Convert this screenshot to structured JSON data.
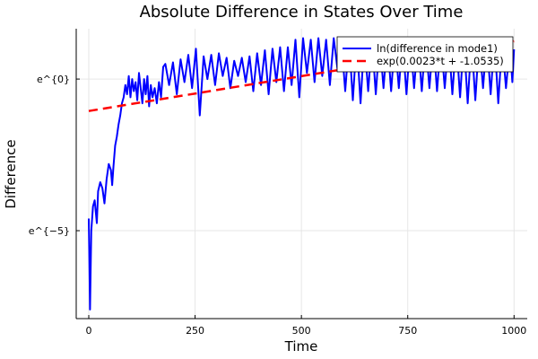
{
  "chart_data": {
    "type": "line",
    "title": "Absolute Difference in States Over Time",
    "xlabel": "Time",
    "ylabel": "Difference",
    "xlim": [
      -29.5,
      1031
    ],
    "ylim": [
      -7.9,
      1.66
    ],
    "grid": true,
    "legend_position": "top-right",
    "x_ticks": [
      {
        "value": 0,
        "label": "0"
      },
      {
        "value": 250,
        "label": "250"
      },
      {
        "value": 500,
        "label": "500"
      },
      {
        "value": 750,
        "label": "750"
      },
      {
        "value": 1000,
        "label": "1000"
      }
    ],
    "y_ticks": [
      {
        "value": 0,
        "label": "e^{0}"
      },
      {
        "value": -5,
        "label": "e^{−5}"
      }
    ],
    "series": [
      {
        "name": "ln(difference in mode1)",
        "color": "#0000ff",
        "style": "solid",
        "x": [
          0,
          3,
          6,
          10,
          14,
          19,
          22,
          27,
          32,
          37,
          42,
          47,
          52,
          55,
          58,
          62,
          66,
          70,
          74,
          78,
          82,
          86,
          90,
          94,
          98,
          102,
          106,
          110,
          114,
          118,
          122,
          126,
          130,
          134,
          138,
          142,
          146,
          150,
          155,
          160,
          165,
          170,
          175,
          180,
          189,
          198,
          207,
          216,
          225,
          234,
          243,
          252,
          261,
          270,
          279,
          288,
          297,
          306,
          315,
          324,
          333,
          342,
          351,
          360,
          369,
          378,
          387,
          396,
          405,
          414,
          423,
          432,
          441,
          450,
          459,
          468,
          477,
          486,
          495,
          504,
          513,
          522,
          531,
          540,
          549,
          558,
          567,
          576,
          585,
          594,
          603,
          612,
          621,
          630,
          639,
          648,
          657,
          666,
          675,
          684,
          693,
          702,
          711,
          720,
          729,
          738,
          747,
          756,
          765,
          774,
          783,
          792,
          801,
          810,
          819,
          828,
          837,
          846,
          855,
          864,
          873,
          882,
          891,
          900,
          909,
          918,
          927,
          936,
          945,
          954,
          963,
          972,
          981,
          990,
          996,
          1000
        ],
        "y": [
          -4.6,
          -7.6,
          -5.0,
          -4.2,
          -4.0,
          -4.75,
          -3.7,
          -3.4,
          -3.6,
          -4.1,
          -3.3,
          -2.8,
          -3.0,
          -3.5,
          -2.9,
          -2.2,
          -1.9,
          -1.5,
          -1.2,
          -0.8,
          -0.6,
          -0.2,
          -0.5,
          0.1,
          -0.6,
          0.0,
          -0.4,
          -0.1,
          -0.7,
          0.2,
          -0.3,
          -0.8,
          0.0,
          -0.5,
          0.1,
          -0.9,
          -0.2,
          -0.6,
          -0.3,
          -0.8,
          -0.1,
          -0.6,
          0.4,
          0.5,
          -0.2,
          0.55,
          -0.5,
          0.65,
          -0.1,
          0.8,
          -0.3,
          1.0,
          -1.2,
          0.75,
          0.0,
          0.8,
          -0.2,
          0.85,
          0.1,
          0.7,
          -0.3,
          0.6,
          0.1,
          0.7,
          -0.1,
          0.75,
          -0.4,
          0.85,
          -0.2,
          0.95,
          -0.5,
          1.0,
          -0.1,
          1.05,
          -0.4,
          1.05,
          -0.2,
          1.3,
          -0.6,
          1.35,
          0.2,
          1.3,
          -0.1,
          1.35,
          0.1,
          1.3,
          -0.2,
          1.35,
          0.3,
          1.3,
          -0.4,
          1.3,
          -0.7,
          1.3,
          -0.8,
          1.3,
          -0.4,
          1.3,
          -0.5,
          1.3,
          -0.3,
          1.3,
          -0.4,
          1.3,
          -0.3,
          1.3,
          -0.5,
          1.3,
          -0.3,
          1.3,
          -0.4,
          1.3,
          -0.3,
          1.3,
          -0.4,
          1.3,
          -0.3,
          1.3,
          -0.5,
          1.3,
          -0.6,
          1.3,
          -0.8,
          1.3,
          -0.7,
          1.3,
          -0.3,
          1.3,
          -0.5,
          1.3,
          -0.8,
          1.25,
          -0.3,
          1.1,
          -0.1,
          0.98
        ]
      },
      {
        "name": "exp(0.0023*t + -1.0535)",
        "color": "#ff0000",
        "style": "dashed",
        "slope": 0.0023,
        "intercept": -1.0535,
        "x_range": [
          0,
          1000
        ]
      }
    ]
  }
}
